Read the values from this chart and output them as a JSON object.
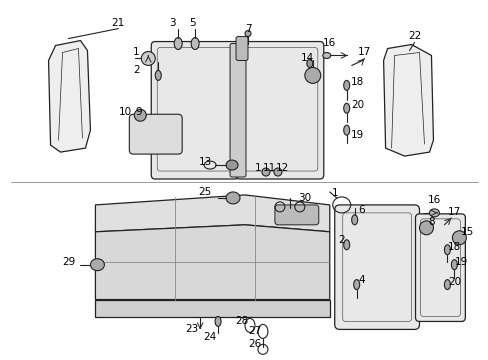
{
  "bg_color": "#ffffff",
  "figsize": [
    4.89,
    3.6
  ],
  "dpi": 100,
  "line_color": "#222222",
  "fill_color": "#f0f0f0"
}
